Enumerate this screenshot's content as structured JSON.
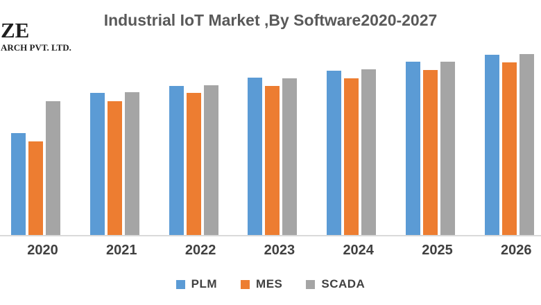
{
  "logo": {
    "line1": "ZE",
    "line2": "ARCH PVT. LTD."
  },
  "title": "Industrial IoT Market ,By Software2020-2027",
  "chart_data": {
    "type": "bar",
    "title": "Industrial IoT Market ,By Software2020-2027",
    "xlabel": "",
    "ylabel": "",
    "value_axis": "not shown (no y-axis ticks or gridlines visible); values below are relative bar heights in screen pixels",
    "legend_position": "bottom",
    "grid": false,
    "categories": [
      "2020",
      "2021",
      "2022",
      "2023",
      "2024",
      "2025",
      "2026"
    ],
    "series": [
      {
        "name": "PLM",
        "color": "#5B9BD5",
        "values": [
          147,
          205,
          215,
          227,
          237,
          250,
          260
        ]
      },
      {
        "name": "MES",
        "color": "#ED7D31",
        "values": [
          135,
          193,
          205,
          215,
          226,
          238,
          249
        ]
      },
      {
        "name": "SCADA",
        "color": "#A5A5A5",
        "values": [
          193,
          206,
          216,
          226,
          239,
          250,
          261
        ]
      }
    ]
  },
  "colors": {
    "plm_blue": "#5B9BD5",
    "mes_orange": "#ED7D31",
    "scada_gray": "#A5A5A5",
    "title_text": "#595959",
    "axis_label_text": "#404040",
    "axis_line": "#D9D9D9",
    "background": "#FFFFFF"
  }
}
